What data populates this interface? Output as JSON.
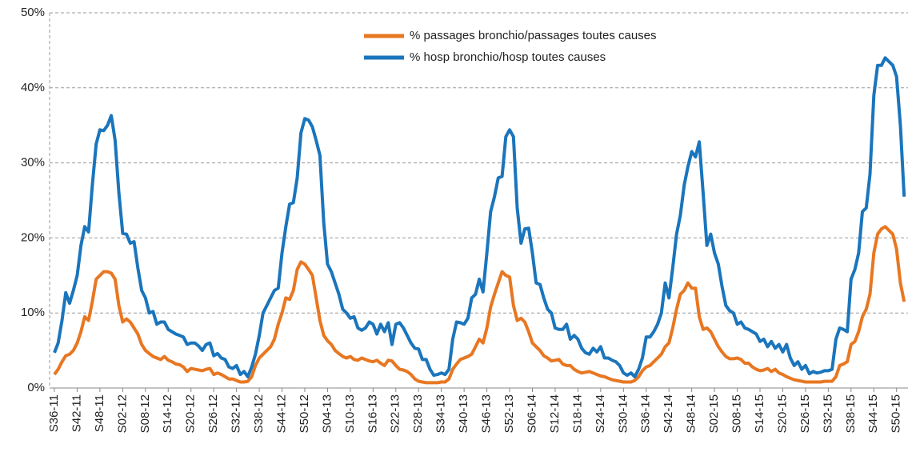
{
  "chart_data": {
    "type": "line",
    "categories": [
      "S36-11",
      null,
      null,
      null,
      null,
      null,
      "S42-11",
      null,
      null,
      null,
      null,
      null,
      "S48-11",
      null,
      null,
      null,
      null,
      null,
      "S02-12",
      null,
      null,
      null,
      null,
      null,
      "S08-12",
      null,
      null,
      null,
      null,
      null,
      "S14-12",
      null,
      null,
      null,
      null,
      null,
      "S20-12",
      null,
      null,
      null,
      null,
      null,
      "S26-12",
      null,
      null,
      null,
      null,
      null,
      "S32-12",
      null,
      null,
      null,
      null,
      null,
      "S38-12",
      null,
      null,
      null,
      null,
      null,
      "S44-12",
      null,
      null,
      null,
      null,
      null,
      "S50-12",
      null,
      null,
      null,
      null,
      null,
      "S04-13",
      null,
      null,
      null,
      null,
      null,
      "S10-13",
      null,
      null,
      null,
      null,
      null,
      "S16-13",
      null,
      null,
      null,
      null,
      null,
      "S22-13",
      null,
      null,
      null,
      null,
      null,
      "S28-13",
      null,
      null,
      null,
      null,
      null,
      "S34-13",
      null,
      null,
      null,
      null,
      null,
      "S40-13",
      null,
      null,
      null,
      null,
      null,
      "S46-13",
      null,
      null,
      null,
      null,
      null,
      "S52-13",
      null,
      null,
      null,
      null,
      null,
      "S06-14",
      null,
      null,
      null,
      null,
      null,
      "S12-14",
      null,
      null,
      null,
      null,
      null,
      "S18-14",
      null,
      null,
      null,
      null,
      null,
      "S24-14",
      null,
      null,
      null,
      null,
      null,
      "S30-14",
      null,
      null,
      null,
      null,
      null,
      "S36-14",
      null,
      null,
      null,
      null,
      null,
      "S42-14",
      null,
      null,
      null,
      null,
      null,
      "S48-14",
      null,
      null,
      null,
      null,
      null,
      "S02-15",
      null,
      null,
      null,
      null,
      null,
      "S08-15",
      null,
      null,
      null,
      null,
      null,
      "S14-15",
      null,
      null,
      null,
      null,
      null,
      "S20-15",
      null,
      null,
      null,
      null,
      null,
      "S26-15",
      null,
      null,
      null,
      null,
      null,
      "S32-15",
      null,
      null,
      null,
      null,
      null,
      "S38-15",
      null,
      null,
      null,
      null,
      null,
      "S44-15",
      null,
      null,
      null,
      null,
      null,
      "S50-15",
      null,
      null
    ],
    "series": [
      {
        "name": "% passages bronchio/passages toutes causes",
        "color": "#e87722",
        "values": [
          1.8,
          2.5,
          3.5,
          4.3,
          4.5,
          5,
          6,
          7.5,
          9.5,
          9,
          11.5,
          14.5,
          15,
          15.5,
          15.5,
          15.3,
          14.5,
          11,
          8.8,
          9.2,
          8.8,
          8,
          7.2,
          5.8,
          5,
          4.6,
          4.2,
          4,
          3.8,
          4.2,
          3.7,
          3.5,
          3.2,
          3.1,
          2.8,
          2.2,
          2.6,
          2.5,
          2.4,
          2.3,
          2.5,
          2.6,
          1.8,
          2,
          1.8,
          1.5,
          1.2,
          1.2,
          1,
          0.8,
          0.8,
          0.9,
          1.5,
          3,
          4,
          4.5,
          5,
          5.5,
          6.5,
          8.5,
          10,
          12,
          11.8,
          13,
          15.8,
          16.8,
          16.5,
          15.8,
          15,
          12,
          9,
          7,
          6.3,
          5.8,
          5,
          4.6,
          4.2,
          4,
          4.2,
          3.8,
          3.7,
          4,
          3.8,
          3.6,
          3.5,
          3.7,
          3.3,
          3,
          3.7,
          3.6,
          3,
          2.5,
          2.4,
          2.2,
          1.8,
          1.2,
          0.9,
          0.8,
          0.7,
          0.7,
          0.7,
          0.7,
          0.8,
          0.8,
          1.2,
          2.5,
          3.2,
          3.8,
          4,
          4.2,
          4.5,
          5.5,
          6.5,
          6,
          8,
          10.8,
          12.5,
          14,
          15.5,
          15,
          14.8,
          11,
          9,
          9.3,
          8.8,
          7.5,
          6,
          5.5,
          5,
          4.3,
          4,
          3.6,
          3.7,
          3.8,
          3.2,
          3,
          3,
          2.5,
          2.2,
          2,
          2.1,
          2.2,
          2,
          1.8,
          1.6,
          1.5,
          1.3,
          1.1,
          1,
          0.9,
          0.8,
          0.8,
          0.8,
          1,
          1.5,
          2.3,
          2.8,
          3,
          3.5,
          4,
          4.5,
          5.5,
          6,
          8,
          10.5,
          12.5,
          13,
          14,
          13.3,
          13.3,
          9.5,
          7.8,
          8,
          7.5,
          6.5,
          5.5,
          4.8,
          4.2,
          3.9,
          3.9,
          4,
          3.8,
          3.3,
          3.3,
          2.8,
          2.5,
          2.3,
          2.4,
          2.6,
          2.2,
          2.5,
          2,
          1.8,
          1.5,
          1.3,
          1.1,
          1,
          0.9,
          0.8,
          0.8,
          0.8,
          0.8,
          0.8,
          0.9,
          0.9,
          0.9,
          1.5,
          3,
          3.2,
          3.5,
          5.8,
          6.2,
          7.5,
          9.5,
          10.5,
          12.5,
          18,
          20.5,
          21.2,
          21.5,
          21,
          20.5,
          18.5,
          14,
          11.5
        ]
      },
      {
        "name": "% hosp bronchio/hosp toutes causes",
        "color": "#1a75bc",
        "values": [
          4.7,
          6,
          9,
          12.7,
          11.3,
          13,
          15,
          19,
          21.5,
          20.8,
          27,
          32.5,
          34.4,
          34.3,
          35,
          36.3,
          33,
          26,
          20.6,
          20.5,
          19.3,
          19.5,
          16,
          13,
          12,
          10,
          10.2,
          8.5,
          8.8,
          8.8,
          7.8,
          7.5,
          7.2,
          7,
          6.8,
          5.8,
          6,
          6,
          5.6,
          5,
          5.8,
          6,
          4.3,
          4.6,
          4,
          3.8,
          2.8,
          2.6,
          3,
          1.8,
          2.2,
          1.5,
          2.8,
          4.5,
          7,
          10,
          11,
          12,
          13,
          13.3,
          18,
          21.5,
          24.5,
          24.7,
          28,
          34,
          35.9,
          35.7,
          34.8,
          33,
          31,
          22,
          16.5,
          15.5,
          14,
          12.5,
          10.5,
          10,
          9.3,
          9.5,
          8,
          7.7,
          8,
          8.8,
          8.5,
          7.2,
          8.5,
          7.5,
          8.7,
          5.8,
          8.5,
          8.7,
          8,
          7,
          6,
          5.3,
          5.2,
          3.8,
          3.8,
          2.5,
          1.7,
          1.8,
          2,
          1.8,
          2.5,
          6.5,
          8.8,
          8.7,
          8.5,
          9.3,
          12,
          12.5,
          14.5,
          12.8,
          18,
          23.5,
          25.5,
          28,
          28.2,
          33.5,
          34.4,
          33.5,
          24,
          19.3,
          21.2,
          21.3,
          18,
          14,
          13.8,
          12,
          10.5,
          10,
          8,
          7.8,
          7.8,
          8.5,
          6.5,
          7,
          6.5,
          5.3,
          4.7,
          4.5,
          5.3,
          4.8,
          5.5,
          4,
          4,
          3.7,
          3.5,
          3,
          2,
          1.7,
          2,
          1.5,
          2.5,
          4,
          6.8,
          6.8,
          7.5,
          8.5,
          10,
          14,
          12,
          16,
          20.5,
          23,
          27,
          29.5,
          31.5,
          30.8,
          32.8,
          26,
          19,
          20.5,
          18,
          16.5,
          13.5,
          11,
          10.3,
          10,
          8.5,
          8.8,
          8,
          7.8,
          7.5,
          7.2,
          6.2,
          6.5,
          5.5,
          6.2,
          5.3,
          5.8,
          4.8,
          5.8,
          4,
          3,
          3.5,
          2.5,
          3,
          1.9,
          2.2,
          2,
          2.1,
          2.3,
          2.3,
          2.5,
          6.5,
          8,
          7.8,
          7.5,
          14.5,
          15.8,
          18,
          23.5,
          24,
          28.5,
          39,
          43,
          43,
          44,
          43.5,
          43,
          41.5,
          35,
          25.5
        ]
      }
    ],
    "ylim": [
      0,
      50
    ],
    "yticks": [
      {
        "value": 0,
        "label": "0%"
      },
      {
        "value": 10,
        "label": "10%"
      },
      {
        "value": 20,
        "label": "20%"
      },
      {
        "value": 30,
        "label": "30%"
      },
      {
        "value": 40,
        "label": "40%"
      },
      {
        "value": 50,
        "label": "50%"
      }
    ],
    "grid": true,
    "legend": "top"
  }
}
